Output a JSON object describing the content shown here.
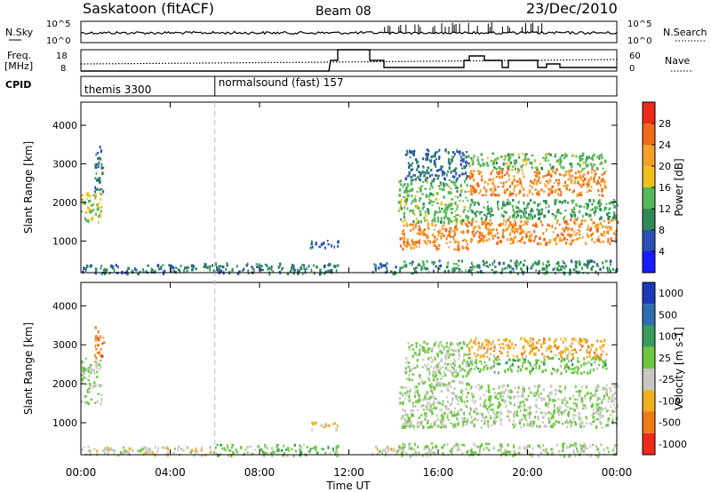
{
  "header": {
    "station": "Saskatoon (fitACF)",
    "beam": "Beam 08",
    "date": "23/Dec/2010"
  },
  "noise_panel": {
    "left_label": "N.Sky",
    "right_label": "N.Search",
    "y_ticks_left": [
      "10^5",
      "10^0"
    ],
    "y_ticks_right": [
      "10^5",
      "10^0"
    ]
  },
  "freq_panel": {
    "left_label_1": "Freq.",
    "left_label_2": "[MHz]",
    "right_label": "Nave",
    "y_ticks_left": [
      "18",
      "8"
    ],
    "y_ticks_right": [
      "60",
      "0"
    ]
  },
  "cpid_panel": {
    "label": "CPID",
    "modes": [
      {
        "name": "themis 3300",
        "start_hour": 0
      },
      {
        "name": "normalsound (fast) 157",
        "start_hour": 6
      }
    ]
  },
  "x_axis": {
    "label": "Time UT",
    "ticks": [
      "00:00",
      "04:00",
      "08:00",
      "12:00",
      "16:00",
      "20:00",
      "00:00"
    ],
    "range_hours": [
      0,
      24
    ]
  },
  "power_panel": {
    "ylabel": "Slant Range [km]",
    "y_ticks": [
      "4000",
      "3000",
      "2000",
      "1000"
    ],
    "colorbar_label": "Power [dB]",
    "colorbar_ticks": [
      "28",
      "24",
      "20",
      "16",
      "12",
      "8",
      "4"
    ],
    "colors": [
      "#1a1aff",
      "#2b4fb5",
      "#2e8b57",
      "#57b85a",
      "#f0c020",
      "#f5a02a",
      "#f06a1a",
      "#ee2a1a"
    ]
  },
  "velocity_panel": {
    "ylabel": "Slant Range [km]",
    "y_ticks": [
      "4000",
      "3000",
      "2000",
      "1000"
    ],
    "colorbar_label": "Velocity [m s-1]",
    "colorbar_ticks": [
      "1000",
      "500",
      "100",
      "25",
      "-25",
      "-100",
      "-500",
      "-1000"
    ],
    "colors": [
      "#1a3ab8",
      "#2e6db0",
      "#3a9a5a",
      "#6cc840",
      "#c8c8c0",
      "#f0b020",
      "#f07a1a",
      "#ee2a1a"
    ]
  },
  "chart_data": [
    {
      "type": "heatmap",
      "title": "Power",
      "xlabel": "Time UT",
      "ylabel": "Slant Range [km]",
      "xlim": [
        0,
        24
      ],
      "ylim": [
        180,
        4600
      ],
      "colorbar_range": [
        0,
        30
      ],
      "regions": [
        {
          "t0": 0.0,
          "t1": 0.9,
          "r0": 1500,
          "r1": 2300,
          "v": 16
        },
        {
          "t0": 0.6,
          "t1": 1.0,
          "r0": 2300,
          "r1": 3500,
          "v": 8
        },
        {
          "t0": 0.0,
          "t1": 5.5,
          "r0": 180,
          "r1": 420,
          "v": 8
        },
        {
          "t0": 5.5,
          "t1": 11.5,
          "r0": 180,
          "r1": 450,
          "v": 9
        },
        {
          "t0": 10.2,
          "t1": 11.5,
          "r0": 850,
          "r1": 1050,
          "v": 6
        },
        {
          "t0": 13.0,
          "t1": 14.2,
          "r0": 180,
          "r1": 450,
          "v": 8
        },
        {
          "t0": 14.2,
          "t1": 24.0,
          "r0": 180,
          "r1": 520,
          "v": 10
        },
        {
          "t0": 14.2,
          "t1": 17.3,
          "r0": 800,
          "r1": 1500,
          "v": 24
        },
        {
          "t0": 14.2,
          "t1": 17.3,
          "r0": 1500,
          "r1": 2600,
          "v": 14
        },
        {
          "t0": 14.5,
          "t1": 17.3,
          "r0": 2600,
          "r1": 3400,
          "v": 8
        },
        {
          "t0": 17.3,
          "t1": 24.0,
          "r0": 950,
          "r1": 1600,
          "v": 24
        },
        {
          "t0": 17.3,
          "t1": 24.0,
          "r0": 1600,
          "r1": 2100,
          "v": 12
        },
        {
          "t0": 17.3,
          "t1": 23.5,
          "r0": 2200,
          "r1": 2900,
          "v": 24
        },
        {
          "t0": 17.3,
          "t1": 23.5,
          "r0": 2900,
          "r1": 3300,
          "v": 14
        }
      ]
    },
    {
      "type": "heatmap",
      "title": "Velocity",
      "xlabel": "Time UT",
      "ylabel": "Slant Range [km]",
      "xlim": [
        0,
        24
      ],
      "ylim": [
        180,
        4600
      ],
      "colorbar_range": [
        -1000,
        1000
      ],
      "regions": [
        {
          "t0": 0.0,
          "t1": 0.9,
          "r0": 1500,
          "r1": 2700,
          "v": 0
        },
        {
          "t0": 0.6,
          "t1": 1.0,
          "r0": 2700,
          "r1": 3500,
          "v": -600
        },
        {
          "t0": 0.0,
          "t1": 6.0,
          "r0": 180,
          "r1": 420,
          "v": -150
        },
        {
          "t0": 6.0,
          "t1": 11.5,
          "r0": 180,
          "r1": 460,
          "v": 120
        },
        {
          "t0": 10.3,
          "t1": 11.5,
          "r0": 850,
          "r1": 1050,
          "v": -250
        },
        {
          "t0": 13.0,
          "t1": 14.2,
          "r0": 180,
          "r1": 450,
          "v": -150
        },
        {
          "t0": 14.2,
          "t1": 24.0,
          "r0": 180,
          "r1": 500,
          "v": 0
        },
        {
          "t0": 14.2,
          "t1": 24.0,
          "r0": 900,
          "r1": 2000,
          "v": 0
        },
        {
          "t0": 14.5,
          "t1": 17.3,
          "r0": 2000,
          "r1": 3100,
          "v": 0
        },
        {
          "t0": 17.3,
          "t1": 23.5,
          "r0": 2300,
          "r1": 2700,
          "v": 150
        },
        {
          "t0": 17.3,
          "t1": 23.5,
          "r0": 2700,
          "r1": 3200,
          "v": -400
        }
      ]
    }
  ]
}
